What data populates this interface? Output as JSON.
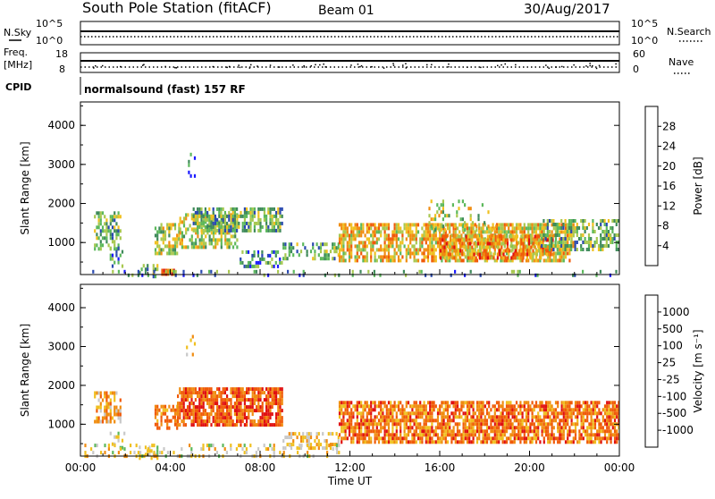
{
  "header": {
    "station": "South Pole Station (fitACF)",
    "beam": "Beam 01",
    "date": "30/Aug/2017"
  },
  "strip_labels": {
    "nsky": "N.Sky",
    "nsearch": "N.Search",
    "freq_line1": "Freq.",
    "freq_line2": "[MHz]",
    "nave": "Nave",
    "cpid": "CPID",
    "cpid_text": "normalsound (fast) 157 RF",
    "nsky_top": "10^5",
    "nsky_bottom": "10^0",
    "nsearch_top": "10^5",
    "nsearch_bottom": "10^0",
    "freq_top": "18",
    "freq_bottom": "8",
    "nave_top": "60",
    "nave_bottom": "0"
  },
  "colors": {
    "power_scale": [
      "#1a1aff",
      "#2a4ab0",
      "#3f8a5a",
      "#5cb85c",
      "#a8c850",
      "#f0c020",
      "#f08c10",
      "#f05a08",
      "#e01010"
    ],
    "velocity_scale": [
      "#e01010",
      "#f05a08",
      "#f08c10",
      "#f0c020",
      "#c8c8c8",
      "#5cb85c",
      "#3f8a5a",
      "#2a4ab0",
      "#1a1aff"
    ]
  },
  "chart_data": [
    {
      "type": "heatmap",
      "panel": "power",
      "ylabel": "Slant Range [km]",
      "yticks": [
        "1000",
        "2000",
        "3000",
        "4000"
      ],
      "ylim": [
        180,
        4600
      ],
      "xlim": [
        0,
        24
      ],
      "colorbar_label": "Power [dB]",
      "colorbar_ticks": [
        "4",
        "8",
        "12",
        "16",
        "20",
        "24",
        "28"
      ],
      "colorbar_range": [
        0,
        32
      ]
    },
    {
      "type": "heatmap",
      "panel": "velocity",
      "ylabel": "Slant Range [km]",
      "yticks": [
        "1000",
        "2000",
        "3000",
        "4000"
      ],
      "ylim": [
        180,
        4600
      ],
      "xlim": [
        0,
        24
      ],
      "xticks": [
        "00:00",
        "04:00",
        "08:00",
        "12:00",
        "16:00",
        "20:00",
        "00:00"
      ],
      "xlabel": "Time UT",
      "colorbar_label": "Velocity [m s⁻¹]",
      "colorbar_ticks": [
        "1000",
        "500",
        "100",
        "25",
        "-25",
        "-100",
        "-500",
        "-1000"
      ]
    }
  ]
}
